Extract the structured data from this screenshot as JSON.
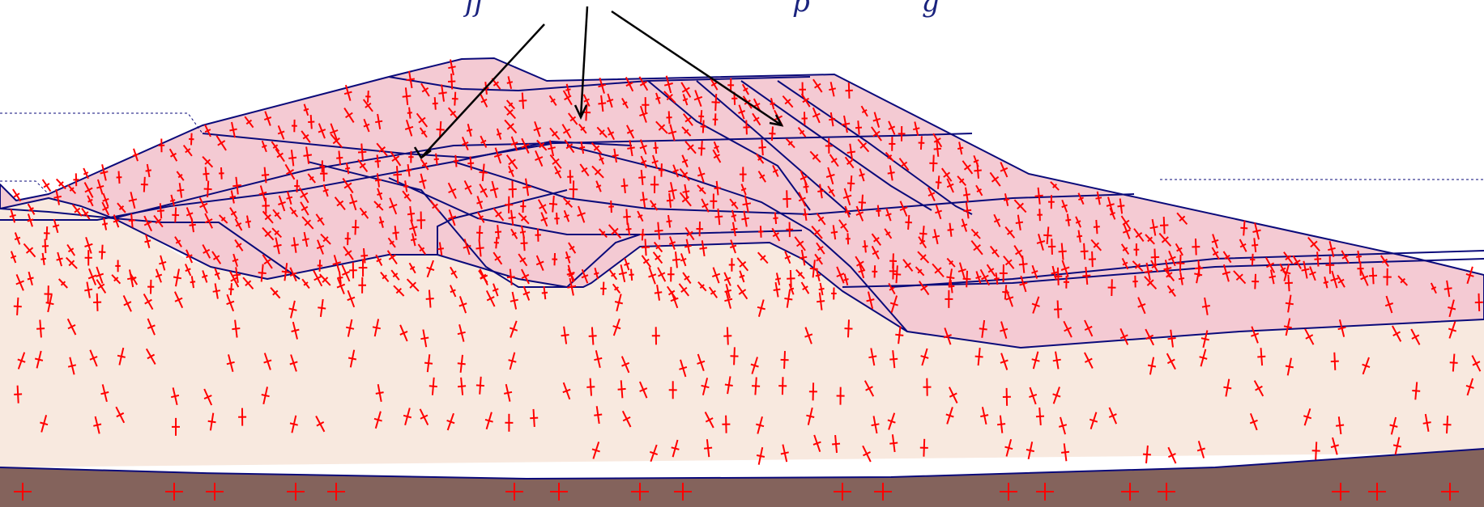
{
  "caption": {
    "left_fragment": "ff",
    "right_fragment": "p",
    "right_tail": "g"
  },
  "colors": {
    "embankment_fill": "#f4cad3",
    "foundation_fill": "#f8e9df",
    "bedrock_fill": "#84635c",
    "zone_boundary": "#0a0a7a",
    "stress_marks": "#ff0000",
    "caption_text": "#1a237e",
    "arrows": "#000000"
  }
}
